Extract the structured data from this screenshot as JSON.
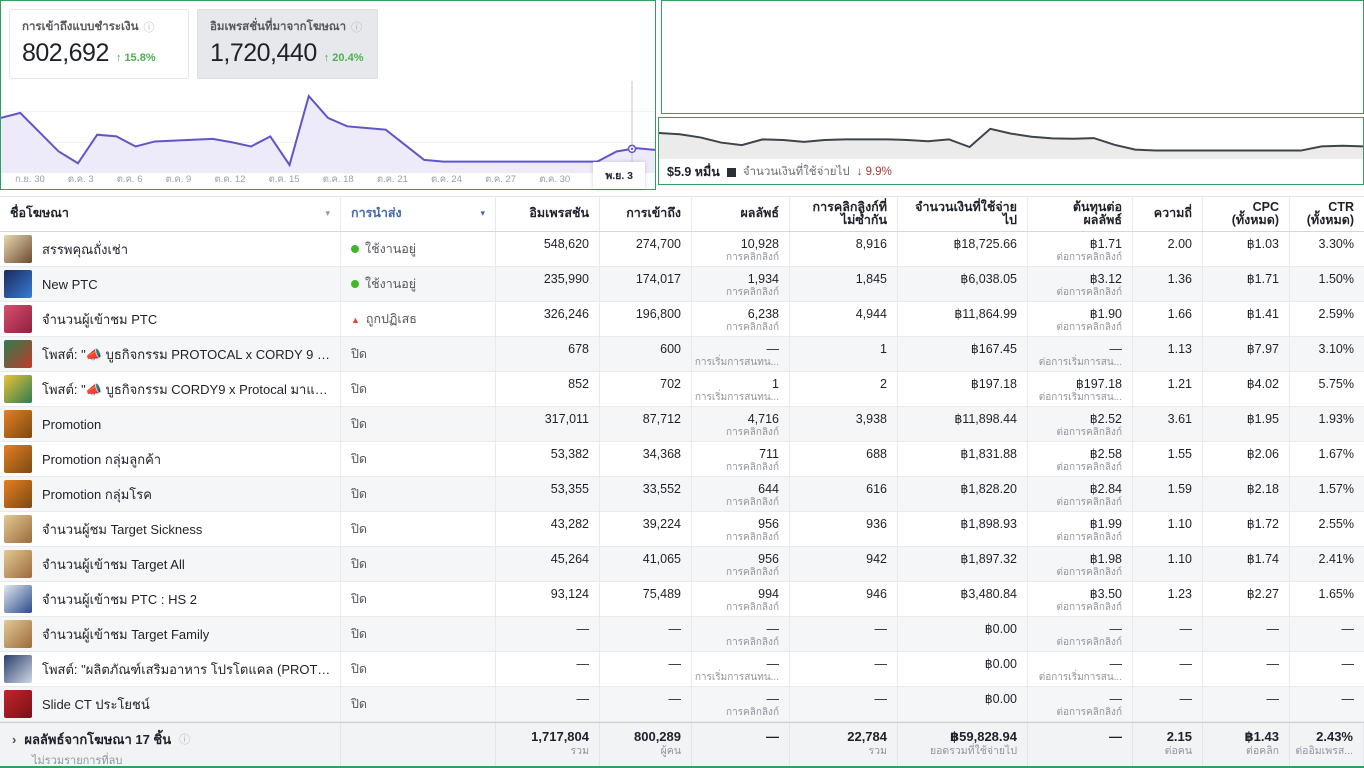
{
  "summary_cards": [
    {
      "label": "การเข้าถึงแบบชำระเงิน",
      "value": "802,692",
      "change": "15.8%",
      "direction": "up"
    },
    {
      "label": "อิมเพรสชั่นที่มาจากโฆษณา",
      "value": "1,720,440",
      "change": "20.4%",
      "direction": "up"
    }
  ],
  "chart_data": [
    {
      "type": "area",
      "name": "การเข้าถึงแบบชำระเงิน",
      "x_ticks": [
        "ก.ย. 30",
        "ต.ค. 3",
        "ต.ค. 6",
        "ต.ค. 9",
        "ต.ค. 12",
        "ต.ค. 15",
        "ต.ค. 18",
        "ต.ค. 21",
        "ต.ค. 24",
        "ต.ค. 27",
        "ต.ค. 30",
        "พ.ย. 3"
      ],
      "values": [
        62,
        68,
        45,
        22,
        8,
        42,
        40,
        28,
        34,
        35,
        36,
        37,
        33,
        28,
        40,
        6,
        88,
        62,
        52,
        50,
        48,
        30,
        12,
        10,
        10,
        10,
        10,
        10,
        10,
        10,
        10,
        10,
        22,
        26,
        24
      ],
      "ylim": [
        0,
        100
      ],
      "color": "#6155c7",
      "fill": "#edeaf9",
      "grid": true,
      "hover_tick": "พ.ย. 3"
    },
    {
      "type": "area",
      "name": "จำนวนเงินที่ใช้จ่ายไป",
      "legend_value": "$5.9 หมื่น",
      "change": "9.9%",
      "change_direction": "down",
      "values": [
        72,
        68,
        58,
        42,
        34,
        52,
        50,
        44,
        50,
        52,
        52,
        52,
        50,
        46,
        52,
        28,
        85,
        70,
        60,
        55,
        54,
        56,
        35,
        20,
        17,
        17,
        17,
        17,
        17,
        17,
        17,
        17,
        30,
        32,
        30
      ],
      "ylim": [
        0,
        100
      ],
      "color": "#3f434a",
      "fill": "#ebebeb",
      "grid": false
    }
  ],
  "table": {
    "columns": [
      {
        "key": "name",
        "label": "ชื่อโฆษณา"
      },
      {
        "key": "delivery",
        "label": "การนำส่ง"
      },
      {
        "key": "impressions",
        "label": "อิมเพรสชัน"
      },
      {
        "key": "reach",
        "label": "การเข้าถึง"
      },
      {
        "key": "results",
        "label": "ผลลัพธ์"
      },
      {
        "key": "unique_clicks",
        "label": "การคลิกลิงก์ที่ไม่ซ้ำกัน"
      },
      {
        "key": "spend",
        "label": "จำนวนเงินที่ใช้จ่ายไป"
      },
      {
        "key": "cost_per_result",
        "label": "ต้นทุนต่อผลลัพธ์"
      },
      {
        "key": "frequency",
        "label": "ความถี่"
      },
      {
        "key": "cpc",
        "label": "CPC (ทั้งหมด)"
      },
      {
        "key": "ctr",
        "label": "CTR (ทั้งหมด)"
      }
    ],
    "rows": [
      {
        "name": "สรรพคุณถั่งเช่า",
        "status_type": "active",
        "status_label": "ใช้งานอยู่",
        "impressions": "548,620",
        "reach": "274,700",
        "results": "10,928",
        "results_type": "การคลิกลิงก์",
        "unique_clicks": "8,916",
        "spend": "฿18,725.66",
        "cost_per_result": "฿1.71",
        "cost_per_result_type": "ต่อการคลิกลิงก์",
        "frequency": "2.00",
        "cpc": "฿1.03",
        "ctr": "3.30%",
        "thumb": [
          "#e8d9b0",
          "#6b4a2f"
        ]
      },
      {
        "name": "New PTC",
        "status_type": "active",
        "status_label": "ใช้งานอยู่",
        "impressions": "235,990",
        "reach": "174,017",
        "results": "1,934",
        "results_type": "การคลิกลิงก์",
        "unique_clicks": "1,845",
        "spend": "฿6,038.05",
        "cost_per_result": "฿3.12",
        "cost_per_result_type": "ต่อการคลิกลิงก์",
        "frequency": "1.36",
        "cpc": "฿1.71",
        "ctr": "1.50%",
        "thumb": [
          "#1a2b5e",
          "#3a7bd5"
        ]
      },
      {
        "name": "จำนวนผู้เข้าชม PTC",
        "status_type": "rejected",
        "status_label": "ถูกปฏิเสธ",
        "impressions": "326,246",
        "reach": "196,800",
        "results": "6,238",
        "results_type": "การคลิกลิงก์",
        "unique_clicks": "4,944",
        "spend": "฿11,864.99",
        "cost_per_result": "฿1.90",
        "cost_per_result_type": "ต่อการคลิกลิงก์",
        "frequency": "1.66",
        "cpc": "฿1.41",
        "ctr": "2.59%",
        "thumb": [
          "#d94f6e",
          "#8e2040"
        ]
      },
      {
        "name": "โพสต์: \"📣 บูธกิจกรรม PROTOCAL x CORDY 9 มาแล้...",
        "status_type": "closed",
        "status_label": "ปิด",
        "impressions": "678",
        "reach": "600",
        "results": "—",
        "results_type": "การเริ่มการสนทน...",
        "unique_clicks": "1",
        "spend": "฿167.45",
        "cost_per_result": "—",
        "cost_per_result_type": "ต่อการเริ่มการสน...",
        "frequency": "1.13",
        "cpc": "฿7.97",
        "ctr": "3.10%",
        "thumb": [
          "#2e7d4f",
          "#c0392b"
        ]
      },
      {
        "name": "โพสต์: \"📣 บูธกิจกรรม CORDY9 x Protocal มาแล้ววว!...",
        "status_type": "closed",
        "status_label": "ปิด",
        "impressions": "852",
        "reach": "702",
        "results": "1",
        "results_type": "การเริ่มการสนทน...",
        "unique_clicks": "2",
        "spend": "฿197.18",
        "cost_per_result": "฿197.18",
        "cost_per_result_type": "ต่อการเริ่มการสน...",
        "frequency": "1.21",
        "cpc": "฿4.02",
        "ctr": "5.75%",
        "thumb": [
          "#e8c33a",
          "#2e7d4f"
        ]
      },
      {
        "name": "Promotion",
        "status_type": "closed",
        "status_label": "ปิด",
        "impressions": "317,011",
        "reach": "87,712",
        "results": "4,716",
        "results_type": "การคลิกลิงก์",
        "unique_clicks": "3,938",
        "spend": "฿11,898.44",
        "cost_per_result": "฿2.52",
        "cost_per_result_type": "ต่อการคลิกลิงก์",
        "frequency": "3.61",
        "cpc": "฿1.95",
        "ctr": "1.93%",
        "thumb": [
          "#e67e22",
          "#7a4a12"
        ]
      },
      {
        "name": "Promotion กลุ่มลูกค้า",
        "status_type": "closed",
        "status_label": "ปิด",
        "impressions": "53,382",
        "reach": "34,368",
        "results": "711",
        "results_type": "การคลิกลิงก์",
        "unique_clicks": "688",
        "spend": "฿1,831.88",
        "cost_per_result": "฿2.58",
        "cost_per_result_type": "ต่อการคลิกลิงก์",
        "frequency": "1.55",
        "cpc": "฿2.06",
        "ctr": "1.67%",
        "thumb": [
          "#e67e22",
          "#7a4a12"
        ]
      },
      {
        "name": "Promotion กลุ่มโรค",
        "status_type": "closed",
        "status_label": "ปิด",
        "impressions": "53,355",
        "reach": "33,552",
        "results": "644",
        "results_type": "การคลิกลิงก์",
        "unique_clicks": "616",
        "spend": "฿1,828.20",
        "cost_per_result": "฿2.84",
        "cost_per_result_type": "ต่อการคลิกลิงก์",
        "frequency": "1.59",
        "cpc": "฿2.18",
        "ctr": "1.57%",
        "thumb": [
          "#e67e22",
          "#7a4a12"
        ]
      },
      {
        "name": "จำนวนผู้ชม Target Sickness",
        "status_type": "closed",
        "status_label": "ปิด",
        "impressions": "43,282",
        "reach": "39,224",
        "results": "956",
        "results_type": "การคลิกลิงก์",
        "unique_clicks": "936",
        "spend": "฿1,898.93",
        "cost_per_result": "฿1.99",
        "cost_per_result_type": "ต่อการคลิกลิงก์",
        "frequency": "1.10",
        "cpc": "฿1.72",
        "ctr": "2.55%",
        "thumb": [
          "#e3c98f",
          "#9a6b3f"
        ]
      },
      {
        "name": "จำนวนผู้เข้าชม Target All",
        "status_type": "closed",
        "status_label": "ปิด",
        "impressions": "45,264",
        "reach": "41,065",
        "results": "956",
        "results_type": "การคลิกลิงก์",
        "unique_clicks": "942",
        "spend": "฿1,897.32",
        "cost_per_result": "฿1.98",
        "cost_per_result_type": "ต่อการคลิกลิงก์",
        "frequency": "1.10",
        "cpc": "฿1.74",
        "ctr": "2.41%",
        "thumb": [
          "#e3c98f",
          "#9a6b3f"
        ]
      },
      {
        "name": "จำนวนผู้เข้าชม PTC : HS 2",
        "status_type": "closed",
        "status_label": "ปิด",
        "impressions": "93,124",
        "reach": "75,489",
        "results": "994",
        "results_type": "การคลิกลิงก์",
        "unique_clicks": "946",
        "spend": "฿3,480.84",
        "cost_per_result": "฿3.50",
        "cost_per_result_type": "ต่อการคลิกลิงก์",
        "frequency": "1.23",
        "cpc": "฿2.27",
        "ctr": "1.65%",
        "thumb": [
          "#dfe7f0",
          "#2b4a8b"
        ]
      },
      {
        "name": "จำนวนผู้เข้าชม Target Family",
        "status_type": "closed",
        "status_label": "ปิด",
        "impressions": "—",
        "reach": "—",
        "results": "—",
        "results_type": "การคลิกลิงก์",
        "unique_clicks": "—",
        "spend": "฿0.00",
        "cost_per_result": "—",
        "cost_per_result_type": "ต่อการคลิกลิงก์",
        "frequency": "—",
        "cpc": "—",
        "ctr": "—",
        "thumb": [
          "#e3c98f",
          "#9a6b3f"
        ]
      },
      {
        "name": "โพสต์: \"ผลิตภัณฑ์เสริมอาหาร โปรโตแคล (PROTOCA...",
        "status_type": "closed",
        "status_label": "ปิด",
        "impressions": "—",
        "reach": "—",
        "results": "—",
        "results_type": "การเริ่มการสนทน...",
        "unique_clicks": "—",
        "spend": "฿0.00",
        "cost_per_result": "—",
        "cost_per_result_type": "ต่อการเริ่มการสน...",
        "frequency": "—",
        "cpc": "—",
        "ctr": "—",
        "thumb": [
          "#2b3e6b",
          "#cfd8e6"
        ]
      },
      {
        "name": "Slide CT ประโยชน์",
        "status_type": "closed",
        "status_label": "ปิด",
        "impressions": "—",
        "reach": "—",
        "results": "—",
        "results_type": "การคลิกลิงก์",
        "unique_clicks": "—",
        "spend": "฿0.00",
        "cost_per_result": "—",
        "cost_per_result_type": "ต่อการคลิกลิงก์",
        "frequency": "—",
        "cpc": "—",
        "ctr": "—",
        "thumb": [
          "#c0262c",
          "#7a1016"
        ]
      }
    ],
    "footer": {
      "title": "ผลลัพธ์จากโฆษณา 17 ชิ้น",
      "subtitle": "ไม่รวมรายการที่ลบ",
      "impressions": "1,717,804",
      "impressions_label": "รวม",
      "reach": "800,289",
      "reach_label": "ผู้คน",
      "results": "—",
      "unique_clicks": "22,784",
      "unique_label": "รวม",
      "spend": "฿59,828.94",
      "spend_label": "ยอดรวมที่ใช้จ่ายไป",
      "cost_per_result": "—",
      "frequency": "2.15",
      "frequency_label": "ต่อคน",
      "cpc": "฿1.43",
      "cpc_label": "ต่อคลิก",
      "ctr": "2.43%",
      "ctr_label": "ต่ออิมเพรส..."
    }
  }
}
